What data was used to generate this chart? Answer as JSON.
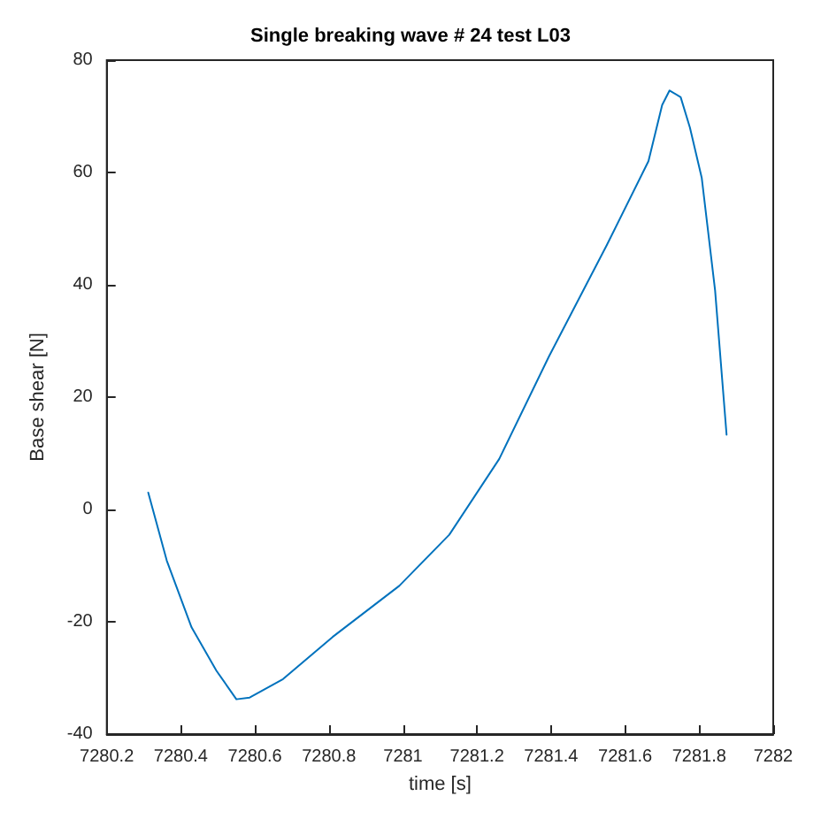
{
  "chart_data": {
    "type": "line",
    "title": "Single breaking wave # 24 test L03",
    "xlabel": "time [s]",
    "ylabel": "Base shear [N]",
    "xlim": [
      7280.2,
      7282
    ],
    "xticks": [
      7280.2,
      7280.4,
      7280.6,
      7280.8,
      7281,
      7281.2,
      7281.4,
      7281.6,
      7281.8,
      7282
    ],
    "ylim": [
      -40,
      80
    ],
    "yticks": [
      -40,
      -20,
      0,
      20,
      40,
      60,
      80
    ],
    "grid": false,
    "marker": "none",
    "line_style": "solid",
    "series": [
      {
        "color": "#0072bd",
        "x": [
          7280.312,
          7280.362,
          7280.429,
          7280.496,
          7280.55,
          7280.586,
          7280.676,
          7280.81,
          7280.99,
          7281.125,
          7281.26,
          7281.394,
          7281.55,
          7281.663,
          7281.7,
          7281.72,
          7281.75,
          7281.775,
          7281.807,
          7281.843,
          7281.874
        ],
        "values": [
          3.0,
          -9.1,
          -21,
          -28.7,
          -33.8,
          -33.5,
          -30.2,
          -22.7,
          -13.6,
          -4.5,
          9,
          27.2,
          47,
          62,
          72,
          74.6,
          73.4,
          68,
          59,
          39,
          13.3
        ]
      }
    ]
  }
}
